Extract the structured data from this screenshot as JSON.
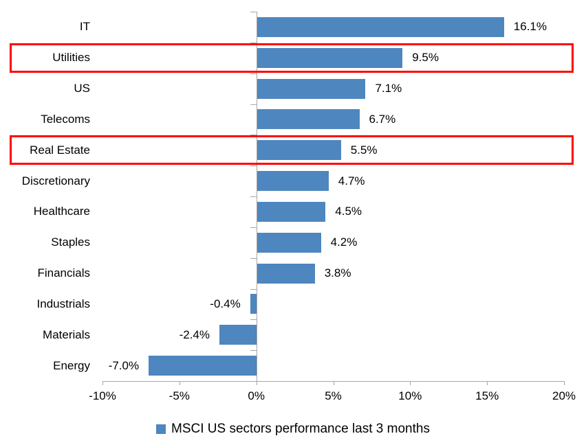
{
  "chart_data": {
    "type": "bar",
    "orientation": "horizontal",
    "title": "",
    "categories": [
      "IT",
      "Utilities",
      "US",
      "Telecoms",
      "Real Estate",
      "Discretionary",
      "Healthcare",
      "Staples",
      "Financials",
      "Industrials",
      "Materials",
      "Energy"
    ],
    "values": [
      16.1,
      9.5,
      7.1,
      6.7,
      5.5,
      4.7,
      4.5,
      4.2,
      3.8,
      -0.4,
      -2.4,
      -7.0
    ],
    "value_labels": [
      "16.1%",
      "9.5%",
      "7.1%",
      "6.7%",
      "5.5%",
      "4.7%",
      "4.5%",
      "4.2%",
      "3.8%",
      "-0.4%",
      "-2.4%",
      "-7.0%"
    ],
    "highlighted_categories": [
      "Utilities",
      "Real Estate"
    ],
    "x_axis": {
      "range": [
        -10,
        20
      ],
      "ticks": [
        -10,
        -5,
        0,
        5,
        10,
        15,
        20
      ],
      "tick_labels": [
        "-10%",
        "-5%",
        "0%",
        "5%",
        "10%",
        "15%",
        "20%"
      ]
    },
    "grid": false,
    "legend": {
      "label": "MSCI US sectors performance last 3 months",
      "position": "bottom"
    },
    "colors": {
      "bar": "#4E86BF",
      "highlight_box": "#FF0000",
      "axis": "#A6A6A6",
      "text": "#000000"
    }
  }
}
